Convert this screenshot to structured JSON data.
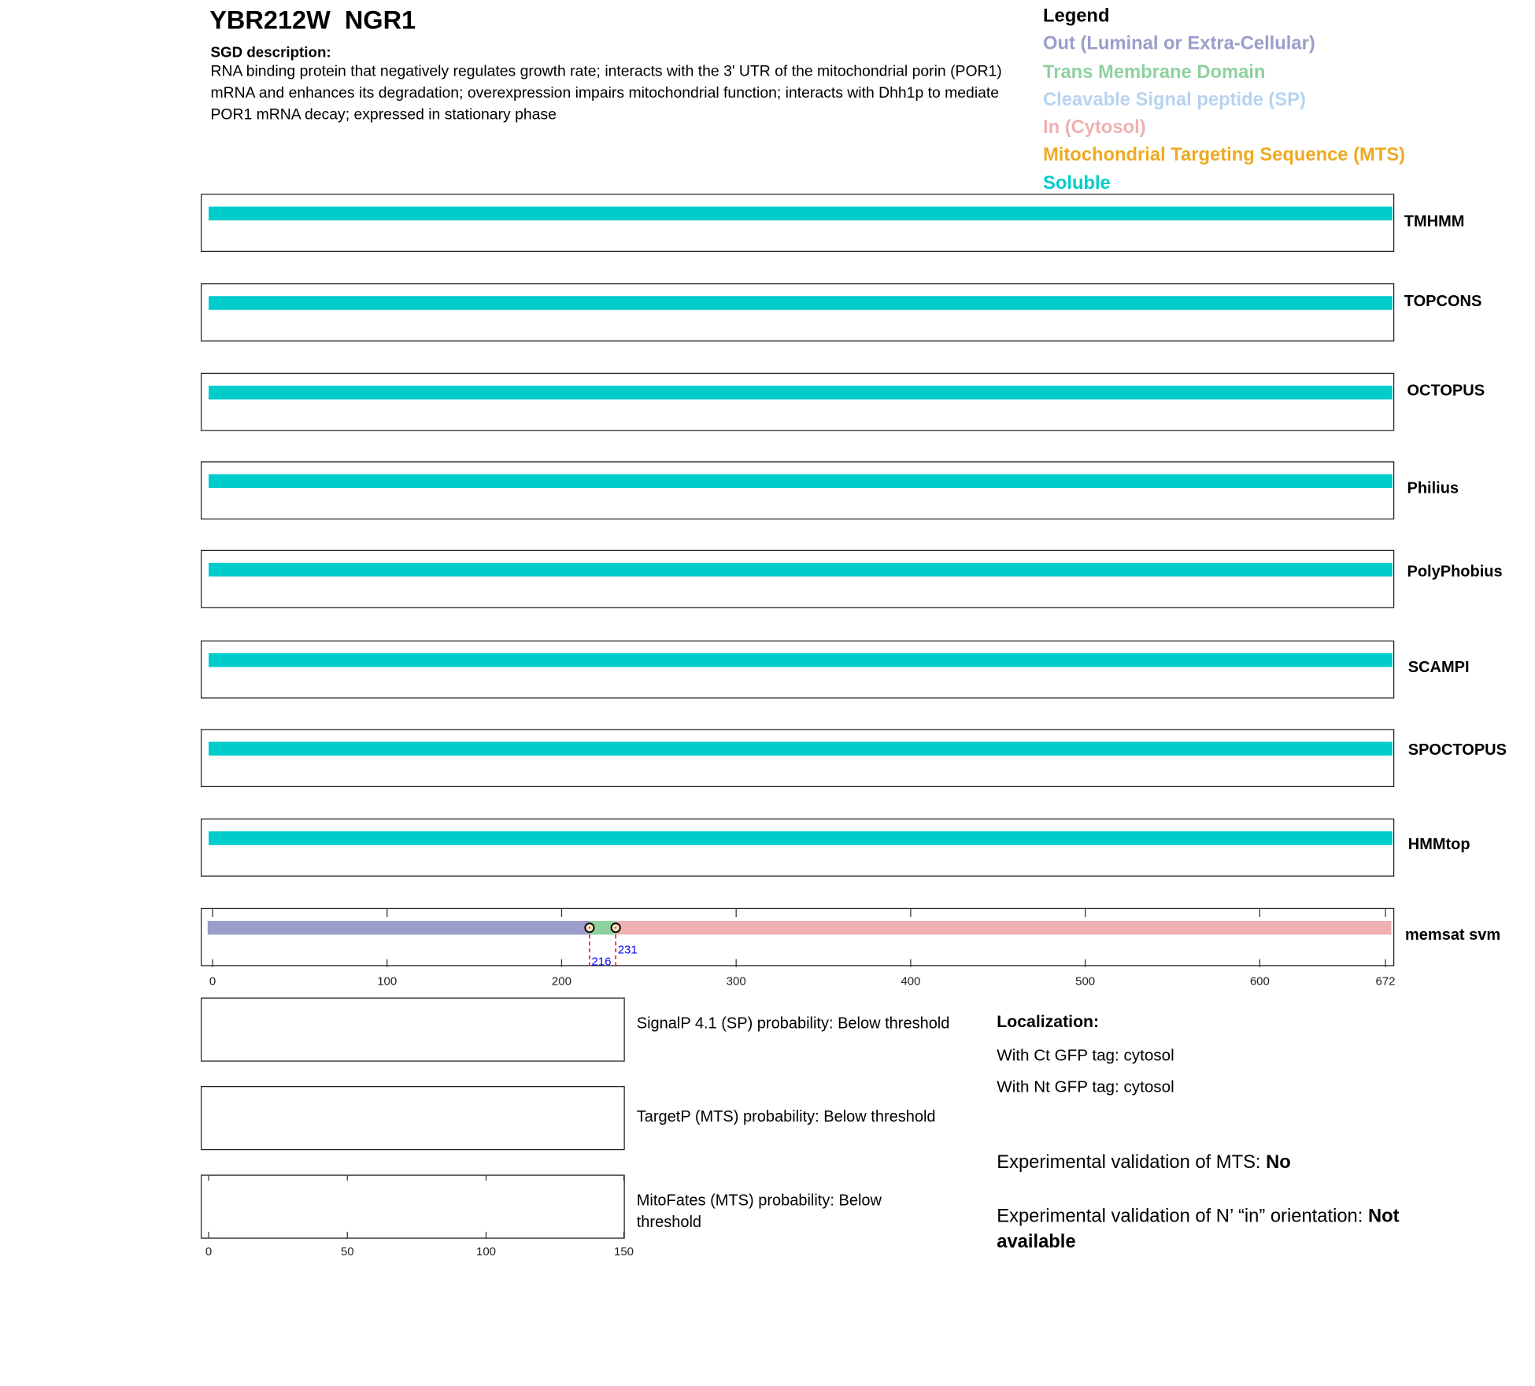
{
  "header": {
    "title": "YBR212W  NGR1",
    "sgd_heading": "SGD description:",
    "sgd_text": "RNA binding protein that negatively regulates growth rate; interacts with the 3' UTR of the mitochondrial porin (POR1) mRNA and enhances its degradation; overexpression impairs mitochondrial function; interacts with Dhh1p to mediate POR1 mRNA decay; expressed in stationary phase"
  },
  "legend": {
    "title": "Legend",
    "items": [
      {
        "label": "Out (Luminal or Extra-Cellular)",
        "color": "#9b9dca"
      },
      {
        "label": "Trans Membrane Domain",
        "color": "#8fd19e"
      },
      {
        "label": "Cleavable Signal peptide (SP)",
        "color": "#b7d3f0"
      },
      {
        "label": "In (Cytosol)",
        "color": "#eeb0b1"
      },
      {
        "label": "Mitochondrial Targeting Sequence (MTS)",
        "color": "#eeaa22"
      },
      {
        "label": "Soluble",
        "color": "#00cccc"
      }
    ]
  },
  "tracks": [
    {
      "name": "TMHMM",
      "type": "Soluble"
    },
    {
      "name": "TOPCONS",
      "type": "Soluble"
    },
    {
      "name": "OCTOPUS",
      "type": "Soluble"
    },
    {
      "name": "Philius",
      "type": "Soluble"
    },
    {
      "name": "PolyPhobius",
      "type": "Soluble"
    },
    {
      "name": "SCAMPI",
      "type": "Soluble"
    },
    {
      "name": "SPOCTOPUS",
      "type": "Soluble"
    },
    {
      "name": "HMMtop",
      "type": "Soluble"
    }
  ],
  "memsat": {
    "name": "memsat svm",
    "length": 672,
    "segments": [
      {
        "start": 1,
        "end": 216,
        "type": "Out"
      },
      {
        "start": 216,
        "end": 231,
        "type": "TM"
      },
      {
        "start": 231,
        "end": 672,
        "type": "In"
      }
    ],
    "markers": [
      "216",
      "231"
    ],
    "axis_ticks": [
      "0",
      "100",
      "200",
      "300",
      "400",
      "500",
      "600",
      "672"
    ]
  },
  "predictions": {
    "signalp": "SignalP 4.1 (SP) probability: Below threshold",
    "targetp": "TargetP (MTS) probability: Below threshold",
    "mitofates": "MitoFates (MTS) probability: Below threshold",
    "axis_ticks": [
      "0",
      "50",
      "100",
      "150"
    ]
  },
  "localization": {
    "heading": "Localization:",
    "ct": "With Ct GFP tag: cytosol",
    "nt": "With Nt GFP tag: cytosol",
    "mts_label": "Experimental validation of MTS: ",
    "mts_value": "No",
    "orient_label": "Experimental validation of N’ “in” orientation: ",
    "orient_value": "Not available"
  }
}
